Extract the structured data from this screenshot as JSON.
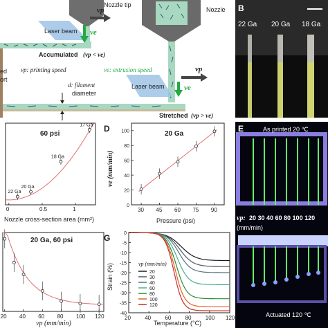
{
  "panelA": {
    "nozzle_tip": "Nozzle tip",
    "nozzle": "Nozzle",
    "laser_beam": "Laser beam",
    "accumulated": "Accumulated",
    "accumulated_cond": "(vp < ve)",
    "stretched": "Stretched",
    "stretched_cond": "(vp > ve)",
    "vp_label": "vp",
    "ve_label": "ve",
    "vp_def": "vp: printing speed",
    "ve_def": "ve: extrusion speed",
    "d_def": "d: filament",
    "d_def2": "diameter",
    "left_cut1": "ed",
    "left_cut2": "ort",
    "colors": {
      "beam": "#9ec3e6",
      "nozzle": "#6a6a6a",
      "filament": "#a8d8c0",
      "green": "#22aa44"
    }
  },
  "panelB": {
    "letter": "B",
    "labels": [
      "22 Ga",
      "20 Ga",
      "18 Ga"
    ]
  },
  "panelC": {
    "chart_data": {
      "type": "scatter",
      "title": "60 psi",
      "xlabel": "Nozzle cross-section area (mm²)",
      "ylabel": "",
      "xticks": [
        "0",
        "0.5",
        "1"
      ],
      "points": [
        {
          "label": "22 Ga",
          "x": 0.13,
          "y": 10
        },
        {
          "label": "20 Ga",
          "x": 0.33,
          "y": 16
        },
        {
          "label": "18 Ga",
          "x": 0.78,
          "y": 53
        },
        {
          "label": "17 Ga",
          "x": 1.21,
          "y": 92
        }
      ],
      "xlim": [
        -0.05,
        1.3
      ],
      "ylim": [
        0,
        100
      ],
      "fit": "quadratic"
    }
  },
  "panelD": {
    "letter": "D",
    "chart_data": {
      "type": "scatter",
      "title": "20 Ga",
      "xlabel": "Pressure (psi)",
      "ylabel": "ve (mm/min)",
      "x": [
        30,
        45,
        60,
        75,
        90
      ],
      "y": [
        21,
        42,
        58,
        79,
        99
      ],
      "xticks": [
        "30",
        "45",
        "60",
        "75",
        "90"
      ],
      "yticks": [
        "0",
        "20",
        "40",
        "60",
        "80",
        "100"
      ],
      "xlim": [
        22,
        98
      ],
      "ylim": [
        0,
        110
      ],
      "fit": "linear"
    }
  },
  "panelE": {
    "letter": "E",
    "top_caption": "As printed  20 ℃",
    "speeds_label": "vp:",
    "speeds": "20  30  40  60  80  100  120",
    "unit": "(mm/min)",
    "bottom_caption": "Actuated 120 ℃"
  },
  "panelF": {
    "chart_data": {
      "type": "scatter",
      "title": "20 Ga, 60 psi",
      "xlabel": "vp (mm/min)",
      "ylabel": "",
      "x": [
        20,
        30,
        40,
        60,
        80,
        100,
        120
      ],
      "y": [
        0.92,
        0.62,
        0.47,
        0.26,
        0.13,
        0.1,
        0.09
      ],
      "xticks": [
        "20",
        "40",
        "60",
        "80",
        "100",
        "120"
      ],
      "xlim": [
        18,
        125
      ],
      "ylim": [
        0,
        1
      ],
      "fit": "exponential"
    }
  },
  "panelG": {
    "letter": "G",
    "chart_data": {
      "type": "line",
      "xlabel": "Temperature (°C)",
      "ylabel": "Strain (%)",
      "legend_title": "vp (mm/min)",
      "xticks": [
        "20",
        "40",
        "60",
        "80",
        "100",
        "120"
      ],
      "yticks": [
        "0",
        "-5",
        "-10",
        "-15",
        "-20",
        "-25",
        "-30",
        "-35",
        "-40"
      ],
      "xlim": [
        20,
        120
      ],
      "ylim": [
        -40,
        0
      ],
      "series": [
        {
          "name": "20",
          "color": "#1a1a1a",
          "final": -14
        },
        {
          "name": "30",
          "color": "#4a5a6a",
          "final": -17
        },
        {
          "name": "40",
          "color": "#5a6f7f",
          "final": -20
        },
        {
          "name": "60",
          "color": "#46b090",
          "final": -26
        },
        {
          "name": "80",
          "color": "#2a8a3a",
          "final": -33
        },
        {
          "name": "100",
          "color": "#e06020",
          "final": -37
        },
        {
          "name": "120",
          "color": "#cc2a2a",
          "final": -39
        }
      ]
    }
  }
}
